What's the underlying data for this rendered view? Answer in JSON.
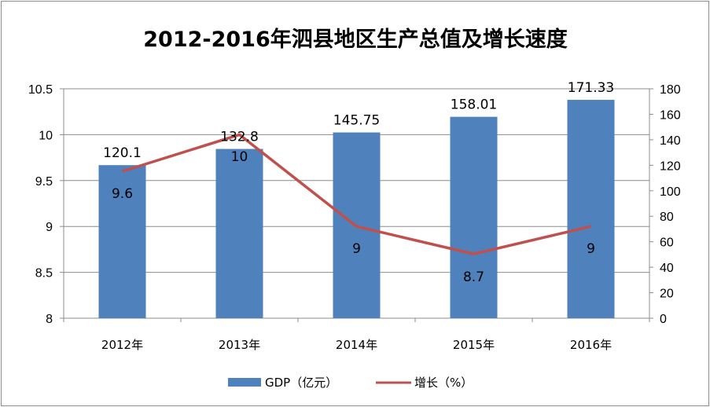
{
  "chart_data": {
    "type": "bar",
    "title": "2012-2016年泗县地区生产总值及增长速度",
    "categories": [
      "2012年",
      "2013年",
      "2014年",
      "2015年",
      "2016年"
    ],
    "series": [
      {
        "name": "GDP（亿元）",
        "type": "bar",
        "axis": "right",
        "values": [
          120.1,
          132.8,
          145.75,
          158.01,
          171.33
        ],
        "labels": [
          "120.1",
          "132.8",
          "145.75",
          "158.01",
          "171.33"
        ]
      },
      {
        "name": "增长（%）",
        "type": "line",
        "axis": "left",
        "values": [
          9.6,
          10,
          9,
          8.7,
          9
        ],
        "labels": [
          "9.6",
          "10",
          "9",
          "8.7",
          "9"
        ]
      }
    ],
    "y_left": {
      "min": 8,
      "max": 10.5,
      "ticks": [
        "8",
        "8.5",
        "9",
        "9.5",
        "10",
        "10.5"
      ],
      "tick_values": [
        8,
        8.5,
        9,
        9.5,
        10,
        10.5
      ]
    },
    "y_right": {
      "min": 0,
      "max": 180,
      "ticks": [
        "0",
        "20",
        "40",
        "60",
        "80",
        "100",
        "120",
        "140",
        "160",
        "180"
      ],
      "tick_values": [
        0,
        20,
        40,
        60,
        80,
        100,
        120,
        140,
        160,
        180
      ]
    },
    "grid": true,
    "legend_position": "bottom",
    "colors": {
      "bar": "#4f81bd",
      "line": "#c0504d",
      "grid": "#8c8c8c"
    }
  }
}
